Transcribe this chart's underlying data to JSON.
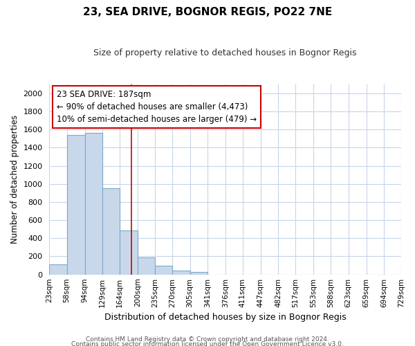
{
  "title": "23, SEA DRIVE, BOGNOR REGIS, PO22 7NE",
  "subtitle": "Size of property relative to detached houses in Bognor Regis",
  "xlabel": "Distribution of detached houses by size in Bognor Regis",
  "ylabel": "Number of detached properties",
  "footnote1": "Contains HM Land Registry data © Crown copyright and database right 2024.",
  "footnote2": "Contains public sector information licensed under the Open Government Licence v3.0.",
  "bin_labels": [
    "23sqm",
    "58sqm",
    "94sqm",
    "129sqm",
    "164sqm",
    "200sqm",
    "235sqm",
    "270sqm",
    "305sqm",
    "341sqm",
    "376sqm",
    "411sqm",
    "447sqm",
    "482sqm",
    "517sqm",
    "553sqm",
    "588sqm",
    "623sqm",
    "659sqm",
    "694sqm",
    "729sqm"
  ],
  "bin_edges": [
    23,
    58,
    94,
    129,
    164,
    200,
    235,
    270,
    305,
    341,
    376,
    411,
    447,
    482,
    517,
    553,
    588,
    623,
    659,
    694,
    729
  ],
  "bar_heights": [
    110,
    1540,
    1560,
    950,
    490,
    185,
    100,
    40,
    25,
    0,
    0,
    0,
    0,
    0,
    0,
    0,
    0,
    0,
    0,
    0
  ],
  "bar_color": "#c8d8ea",
  "bar_edge_color": "#7aaac8",
  "fig_background": "#ffffff",
  "plot_background": "#ffffff",
  "grid_color": "#c8d4e8",
  "property_size": 187,
  "vline_color": "#cc0000",
  "annotation_line1": "23 SEA DRIVE: 187sqm",
  "annotation_line2": "← 90% of detached houses are smaller (4,473)",
  "annotation_line3": "10% of semi-detached houses are larger (479) →",
  "ylim": [
    0,
    2100
  ],
  "yticks": [
    0,
    200,
    400,
    600,
    800,
    1000,
    1200,
    1400,
    1600,
    1800,
    2000
  ]
}
